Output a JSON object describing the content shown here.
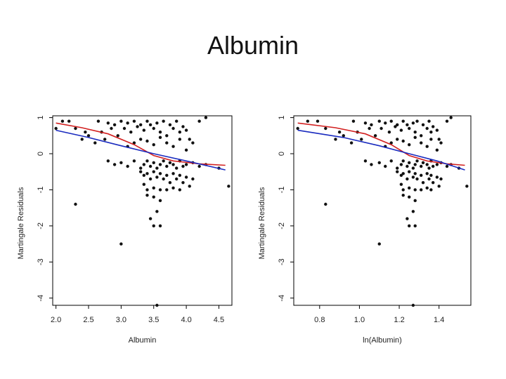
{
  "slide": {
    "title": "Albumin"
  },
  "chart_data": [
    {
      "type": "scatter",
      "xlabel": "Albumin",
      "ylabel": "Martingale Residuals",
      "xlim": [
        1.95,
        4.7
      ],
      "ylim": [
        -4.2,
        1.05
      ],
      "xticks": [
        "2.0",
        "2.5",
        "3.0",
        "3.5",
        "4.0",
        "4.5"
      ],
      "yticks": [
        "1",
        "0",
        "-1",
        "-2",
        "-3",
        "-4"
      ],
      "grid": false,
      "points": [
        [
          2.0,
          0.7
        ],
        [
          2.1,
          0.9
        ],
        [
          2.2,
          0.9
        ],
        [
          2.3,
          0.7
        ],
        [
          2.4,
          0.4
        ],
        [
          2.45,
          0.6
        ],
        [
          2.5,
          0.5
        ],
        [
          2.6,
          0.3
        ],
        [
          2.65,
          0.9
        ],
        [
          2.7,
          0.6
        ],
        [
          2.75,
          0.4
        ],
        [
          2.8,
          0.85
        ],
        [
          2.85,
          0.7
        ],
        [
          2.9,
          0.8
        ],
        [
          2.95,
          0.5
        ],
        [
          3.0,
          0.9
        ],
        [
          3.05,
          0.7
        ],
        [
          3.1,
          0.85
        ],
        [
          3.15,
          0.6
        ],
        [
          3.2,
          0.9
        ],
        [
          3.25,
          0.75
        ],
        [
          3.3,
          0.8
        ],
        [
          3.35,
          0.65
        ],
        [
          3.4,
          0.9
        ],
        [
          3.45,
          0.8
        ],
        [
          3.5,
          0.7
        ],
        [
          3.55,
          0.85
        ],
        [
          3.6,
          0.6
        ],
        [
          3.65,
          0.9
        ],
        [
          3.7,
          0.5
        ],
        [
          3.75,
          0.8
        ],
        [
          3.8,
          0.7
        ],
        [
          3.85,
          0.9
        ],
        [
          3.9,
          0.6
        ],
        [
          3.95,
          0.75
        ],
        [
          4.0,
          0.65
        ],
        [
          4.05,
          0.4
        ],
        [
          4.1,
          0.3
        ],
        [
          4.2,
          0.9
        ],
        [
          4.3,
          1.0
        ],
        [
          3.1,
          0.2
        ],
        [
          3.2,
          0.3
        ],
        [
          3.3,
          0.4
        ],
        [
          3.4,
          0.35
        ],
        [
          3.5,
          0.25
        ],
        [
          3.6,
          0.45
        ],
        [
          3.7,
          0.3
        ],
        [
          3.8,
          0.2
        ],
        [
          3.9,
          0.4
        ],
        [
          4.0,
          0.1
        ],
        [
          2.8,
          -0.2
        ],
        [
          2.9,
          -0.3
        ],
        [
          3.0,
          -0.25
        ],
        [
          3.1,
          -0.35
        ],
        [
          3.2,
          -0.2
        ],
        [
          3.3,
          -0.4
        ],
        [
          3.35,
          -0.3
        ],
        [
          3.4,
          -0.2
        ],
        [
          3.45,
          -0.35
        ],
        [
          3.5,
          -0.25
        ],
        [
          3.55,
          -0.4
        ],
        [
          3.6,
          -0.3
        ],
        [
          3.65,
          -0.2
        ],
        [
          3.7,
          -0.35
        ],
        [
          3.75,
          -0.25
        ],
        [
          3.8,
          -0.3
        ],
        [
          3.85,
          -0.4
        ],
        [
          3.9,
          -0.2
        ],
        [
          3.95,
          -0.35
        ],
        [
          4.0,
          -0.3
        ],
        [
          4.1,
          -0.25
        ],
        [
          4.2,
          -0.35
        ],
        [
          4.3,
          -0.3
        ],
        [
          4.5,
          -0.4
        ],
        [
          4.65,
          -0.9
        ],
        [
          3.3,
          -0.5
        ],
        [
          3.35,
          -0.6
        ],
        [
          3.4,
          -0.55
        ],
        [
          3.45,
          -0.7
        ],
        [
          3.5,
          -0.5
        ],
        [
          3.55,
          -0.65
        ],
        [
          3.6,
          -0.55
        ],
        [
          3.65,
          -0.7
        ],
        [
          3.7,
          -0.6
        ],
        [
          3.75,
          -0.8
        ],
        [
          3.8,
          -0.55
        ],
        [
          3.85,
          -0.7
        ],
        [
          3.9,
          -0.6
        ],
        [
          3.95,
          -0.8
        ],
        [
          4.0,
          -0.65
        ],
        [
          4.05,
          -0.9
        ],
        [
          4.1,
          -0.7
        ],
        [
          3.35,
          -0.85
        ],
        [
          3.4,
          -1.0
        ],
        [
          3.5,
          -0.95
        ],
        [
          3.6,
          -1.0
        ],
        [
          3.7,
          -1.0
        ],
        [
          3.8,
          -0.95
        ],
        [
          3.9,
          -1.0
        ],
        [
          3.4,
          -1.15
        ],
        [
          3.5,
          -1.2
        ],
        [
          3.6,
          -1.3
        ],
        [
          2.3,
          -1.4
        ],
        [
          3.55,
          -1.6
        ],
        [
          3.45,
          -1.8
        ],
        [
          3.5,
          -2.0
        ],
        [
          3.6,
          -2.0
        ],
        [
          3.0,
          -2.5
        ],
        [
          3.55,
          -4.2
        ]
      ],
      "series": [
        {
          "lines": [
            [
              2.0,
              0.85
            ],
            [
              2.4,
              0.72
            ],
            [
              2.8,
              0.55
            ],
            [
              3.2,
              0.25
            ],
            [
              3.5,
              -0.05
            ],
            [
              3.8,
              -0.2
            ],
            [
              4.2,
              -0.28
            ],
            [
              4.6,
              -0.32
            ]
          ]
        },
        {
          "lines": [
            [
              2.0,
              0.65
            ],
            [
              2.5,
              0.45
            ],
            [
              3.0,
              0.22
            ],
            [
              3.5,
              0.0
            ],
            [
              4.0,
              -0.2
            ],
            [
              4.6,
              -0.45
            ]
          ]
        }
      ],
      "colors": [
        "#d22020",
        "#1a2bbf"
      ]
    },
    {
      "type": "scatter",
      "xlabel": "ln(Albumin)",
      "ylabel": "Martingale Residuals",
      "xlim": [
        0.67,
        1.56
      ],
      "ylim": [
        -4.2,
        1.05
      ],
      "xticks": [
        "0.8",
        "1.0",
        "1.2",
        "1.4"
      ],
      "yticks": [
        "1",
        "0",
        "-1",
        "-2",
        "-3",
        "-4"
      ],
      "grid": false,
      "points": [
        [
          0.69,
          0.7
        ],
        [
          0.74,
          0.9
        ],
        [
          0.79,
          0.9
        ],
        [
          0.83,
          0.7
        ],
        [
          0.88,
          0.4
        ],
        [
          0.9,
          0.6
        ],
        [
          0.92,
          0.5
        ],
        [
          0.96,
          0.3
        ],
        [
          0.97,
          0.9
        ],
        [
          0.99,
          0.6
        ],
        [
          1.01,
          0.4
        ],
        [
          1.03,
          0.85
        ],
        [
          1.05,
          0.7
        ],
        [
          1.06,
          0.8
        ],
        [
          1.08,
          0.5
        ],
        [
          1.1,
          0.9
        ],
        [
          1.11,
          0.7
        ],
        [
          1.13,
          0.85
        ],
        [
          1.15,
          0.6
        ],
        [
          1.16,
          0.9
        ],
        [
          1.18,
          0.75
        ],
        [
          1.19,
          0.8
        ],
        [
          1.21,
          0.65
        ],
        [
          1.22,
          0.9
        ],
        [
          1.24,
          0.8
        ],
        [
          1.25,
          0.7
        ],
        [
          1.27,
          0.85
        ],
        [
          1.28,
          0.6
        ],
        [
          1.29,
          0.9
        ],
        [
          1.31,
          0.5
        ],
        [
          1.32,
          0.8
        ],
        [
          1.34,
          0.7
        ],
        [
          1.35,
          0.9
        ],
        [
          1.36,
          0.6
        ],
        [
          1.37,
          0.75
        ],
        [
          1.39,
          0.65
        ],
        [
          1.4,
          0.4
        ],
        [
          1.41,
          0.3
        ],
        [
          1.44,
          0.9
        ],
        [
          1.46,
          1.0
        ],
        [
          1.13,
          0.2
        ],
        [
          1.16,
          0.3
        ],
        [
          1.19,
          0.4
        ],
        [
          1.22,
          0.35
        ],
        [
          1.25,
          0.25
        ],
        [
          1.28,
          0.45
        ],
        [
          1.31,
          0.3
        ],
        [
          1.34,
          0.2
        ],
        [
          1.36,
          0.4
        ],
        [
          1.39,
          0.1
        ],
        [
          1.03,
          -0.2
        ],
        [
          1.06,
          -0.3
        ],
        [
          1.1,
          -0.25
        ],
        [
          1.13,
          -0.35
        ],
        [
          1.16,
          -0.2
        ],
        [
          1.19,
          -0.4
        ],
        [
          1.21,
          -0.3
        ],
        [
          1.22,
          -0.2
        ],
        [
          1.24,
          -0.35
        ],
        [
          1.25,
          -0.25
        ],
        [
          1.27,
          -0.4
        ],
        [
          1.28,
          -0.3
        ],
        [
          1.29,
          -0.2
        ],
        [
          1.31,
          -0.35
        ],
        [
          1.32,
          -0.25
        ],
        [
          1.34,
          -0.3
        ],
        [
          1.35,
          -0.4
        ],
        [
          1.36,
          -0.2
        ],
        [
          1.37,
          -0.35
        ],
        [
          1.39,
          -0.3
        ],
        [
          1.41,
          -0.25
        ],
        [
          1.44,
          -0.35
        ],
        [
          1.46,
          -0.3
        ],
        [
          1.5,
          -0.4
        ],
        [
          1.54,
          -0.9
        ],
        [
          1.19,
          -0.5
        ],
        [
          1.21,
          -0.6
        ],
        [
          1.22,
          -0.55
        ],
        [
          1.24,
          -0.7
        ],
        [
          1.25,
          -0.5
        ],
        [
          1.27,
          -0.65
        ],
        [
          1.28,
          -0.55
        ],
        [
          1.29,
          -0.7
        ],
        [
          1.31,
          -0.6
        ],
        [
          1.32,
          -0.8
        ],
        [
          1.34,
          -0.55
        ],
        [
          1.35,
          -0.7
        ],
        [
          1.36,
          -0.6
        ],
        [
          1.37,
          -0.8
        ],
        [
          1.39,
          -0.65
        ],
        [
          1.4,
          -0.9
        ],
        [
          1.41,
          -0.7
        ],
        [
          1.21,
          -0.85
        ],
        [
          1.22,
          -1.0
        ],
        [
          1.25,
          -0.95
        ],
        [
          1.28,
          -1.0
        ],
        [
          1.31,
          -1.0
        ],
        [
          1.34,
          -0.95
        ],
        [
          1.36,
          -1.0
        ],
        [
          1.22,
          -1.15
        ],
        [
          1.25,
          -1.2
        ],
        [
          1.28,
          -1.3
        ],
        [
          0.83,
          -1.4
        ],
        [
          1.27,
          -1.6
        ],
        [
          1.24,
          -1.8
        ],
        [
          1.25,
          -2.0
        ],
        [
          1.28,
          -2.0
        ],
        [
          1.1,
          -2.5
        ],
        [
          1.27,
          -4.2
        ]
      ],
      "series": [
        {
          "lines": [
            [
              0.69,
              0.85
            ],
            [
              0.88,
              0.72
            ],
            [
              1.03,
              0.55
            ],
            [
              1.16,
              0.25
            ],
            [
              1.25,
              -0.05
            ],
            [
              1.34,
              -0.2
            ],
            [
              1.44,
              -0.28
            ],
            [
              1.53,
              -0.32
            ]
          ]
        },
        {
          "lines": [
            [
              0.69,
              0.65
            ],
            [
              0.92,
              0.45
            ],
            [
              1.1,
              0.22
            ],
            [
              1.25,
              0.0
            ],
            [
              1.39,
              -0.2
            ],
            [
              1.53,
              -0.45
            ]
          ]
        }
      ],
      "colors": [
        "#d22020",
        "#1a2bbf"
      ]
    }
  ]
}
